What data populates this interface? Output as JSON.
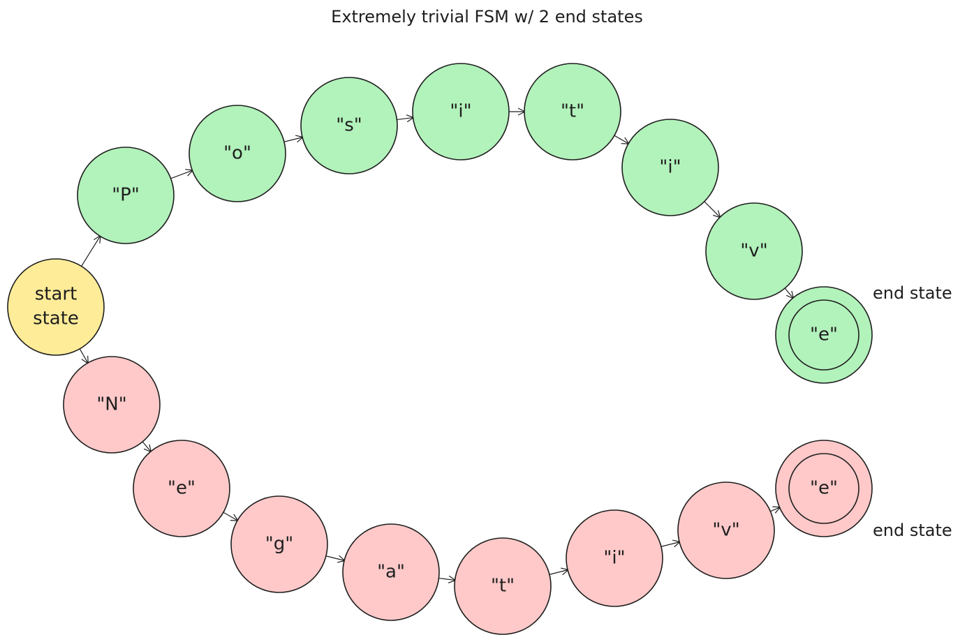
{
  "title": "Extremely trivial FSM w/ 2 end states",
  "colors": {
    "start": "#ffec99",
    "accept_path": "#b2f2bb",
    "reject_path": "#ffc9c9",
    "stroke": "#1e1e1e"
  },
  "start": {
    "label_line1": "start",
    "label_line2": "state"
  },
  "green_path": [
    "\"P\"",
    "\"o\"",
    "\"s\"",
    "\"i\"",
    "\"t\"",
    "\"i\"",
    "\"v\"",
    "\"e\""
  ],
  "red_path": [
    "\"N\"",
    "\"e\"",
    "\"g\"",
    "\"a\"",
    "\"t\"",
    "\"i\"",
    "\"v\"",
    "\"e\""
  ],
  "end_labels": [
    "end state",
    "end state"
  ]
}
